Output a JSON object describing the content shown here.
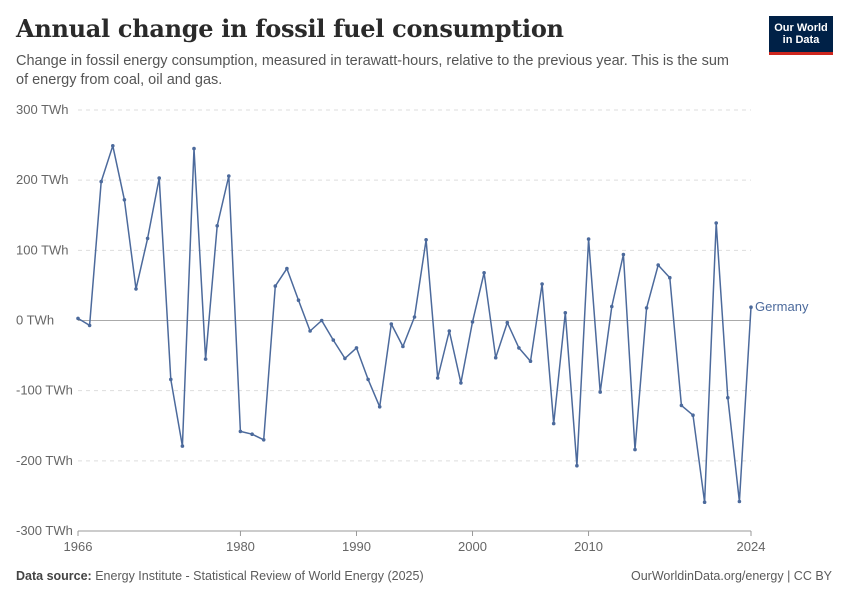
{
  "header": {
    "title": "Annual change in fossil fuel consumption",
    "subtitle": "Change in fossil energy consumption, measured in terawatt-hours, relative to the previous year. This is the sum of energy from coal, oil and gas.",
    "logo_line1": "Our World",
    "logo_line2": "in Data"
  },
  "footer": {
    "source_label": "Data source:",
    "source_text": "Energy Institute - Statistical Review of World Energy (2025)",
    "credit": "OurWorldinData.org/energy | CC BY"
  },
  "colors": {
    "series": "#4c6a9c",
    "grid": "#dddddd",
    "zero_line": "#aaaaaa",
    "logo_bg": "#002147",
    "logo_accent": "#ce261e"
  },
  "chart_data": {
    "type": "line",
    "title": "Annual change in fossil fuel consumption",
    "y_unit": "TWh",
    "ylim": [
      -300,
      300
    ],
    "xlim": [
      1966,
      2024
    ],
    "y_ticks": [
      "300 TWh",
      "200 TWh",
      "100 TWh",
      "0 TWh",
      "-100 TWh",
      "-200 TWh",
      "-300 TWh"
    ],
    "y_tick_values": [
      300,
      200,
      100,
      0,
      -100,
      -200,
      -300
    ],
    "x_ticks": [
      "1966",
      "1980",
      "1990",
      "2000",
      "2010",
      "2024"
    ],
    "x_tick_values": [
      1966,
      1980,
      1990,
      2000,
      2010,
      2024
    ],
    "grid": "horizontal dashed",
    "legend": "inline label at end of line",
    "series": [
      {
        "name": "Germany",
        "x": [
          1966,
          1967,
          1968,
          1969,
          1970,
          1971,
          1972,
          1973,
          1974,
          1975,
          1976,
          1977,
          1978,
          1979,
          1980,
          1981,
          1982,
          1983,
          1984,
          1985,
          1986,
          1987,
          1988,
          1989,
          1990,
          1991,
          1992,
          1993,
          1994,
          1995,
          1996,
          1997,
          1998,
          1999,
          2000,
          2001,
          2002,
          2003,
          2004,
          2005,
          2006,
          2007,
          2008,
          2009,
          2010,
          2011,
          2012,
          2013,
          2014,
          2015,
          2016,
          2017,
          2018,
          2019,
          2020,
          2021,
          2022,
          2023,
          2024
        ],
        "values": [
          3,
          -7,
          198,
          249,
          172,
          45,
          117,
          203,
          -84,
          -179,
          245,
          -55,
          135,
          206,
          -158,
          -162,
          -170,
          49,
          74,
          29,
          -15,
          0,
          -28,
          -54,
          -39,
          -84,
          -123,
          -5,
          -37,
          5,
          115,
          -82,
          -15,
          -89,
          -2,
          68,
          -53,
          -3,
          -39,
          -58,
          52,
          -147,
          11,
          -207,
          116,
          -102,
          20,
          94,
          -184,
          18,
          79,
          61,
          -121,
          -135,
          -259,
          139,
          -110,
          -258,
          19
        ]
      }
    ]
  }
}
